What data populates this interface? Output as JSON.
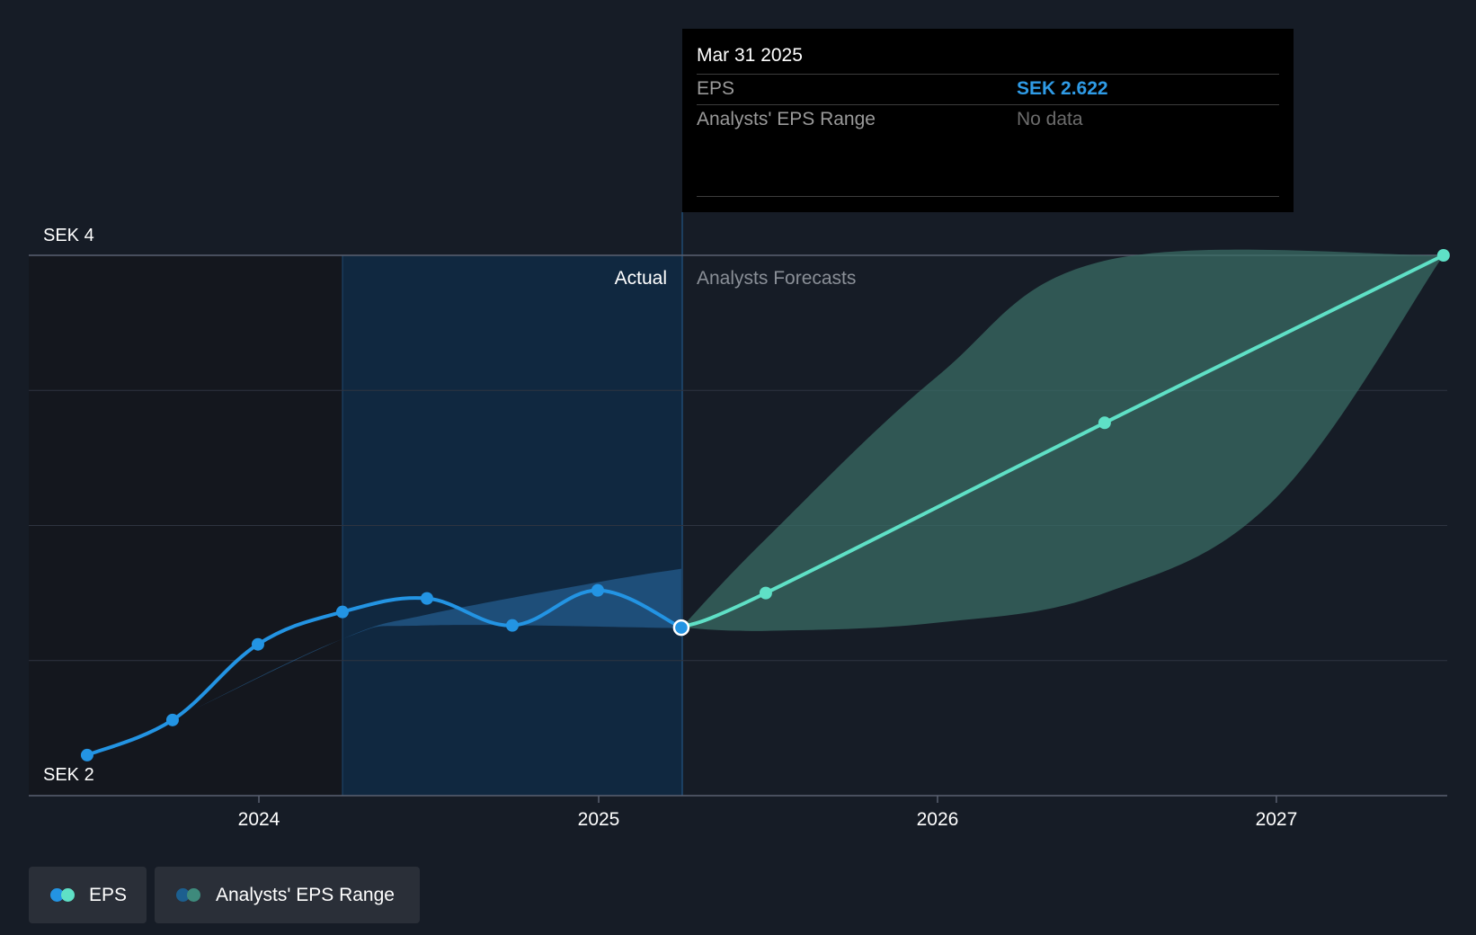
{
  "tooltip": {
    "date": "Mar 31 2025",
    "eps_label": "EPS",
    "eps_value": "SEK 2.622",
    "range_label": "Analysts' EPS Range",
    "range_value": "No data"
  },
  "labels": {
    "actual": "Actual",
    "forecast": "Analysts Forecasts"
  },
  "legend": {
    "eps": "EPS",
    "range": "Analysts' EPS Range"
  },
  "colors": {
    "background": "#161c26",
    "actual_line": "#2394e3",
    "forecast_line": "#5fe0c6",
    "forecast_band": "#3a6f66",
    "actual_band": "#2a6ea8",
    "highlight": "#0f2a44"
  },
  "chart_data": {
    "type": "line",
    "x_tick_labels": [
      "2024",
      "2025",
      "2026",
      "2027"
    ],
    "y_tick_labels": [
      "SEK 2",
      "SEK 4"
    ],
    "ylim": [
      2,
      4
    ],
    "xlim": [
      "2023-06",
      "2027-06"
    ],
    "grid": true,
    "legend_position": "bottom-left",
    "series": [
      {
        "name": "EPS",
        "points": [
          {
            "x": "2023-06-30",
            "y": 2.15
          },
          {
            "x": "2023-09-30",
            "y": 2.28
          },
          {
            "x": "2023-12-31",
            "y": 2.56
          },
          {
            "x": "2024-03-31",
            "y": 2.68
          },
          {
            "x": "2024-06-30",
            "y": 2.73
          },
          {
            "x": "2024-09-30",
            "y": 2.63
          },
          {
            "x": "2024-12-31",
            "y": 2.76
          },
          {
            "x": "2025-03-31",
            "y": 2.622
          }
        ]
      },
      {
        "name": "EPS",
        "forecast": true,
        "points": [
          {
            "x": "2025-03-31",
            "y": 2.622
          },
          {
            "x": "2025-06-30",
            "y": 2.75
          },
          {
            "x": "2026-06-30",
            "y": 3.38
          },
          {
            "x": "2027-06-30",
            "y": 4.0
          }
        ]
      },
      {
        "name": "Analysts' EPS Range",
        "type": "area",
        "actual_band": {
          "low": [
            {
              "x": "2023-09-30",
              "y": 2.28
            },
            {
              "x": "2024-03-31",
              "y": 2.58
            },
            {
              "x": "2024-06-30",
              "y": 2.63
            },
            {
              "x": "2025-03-31",
              "y": 2.62
            }
          ],
          "high": [
            {
              "x": "2023-09-30",
              "y": 2.28
            },
            {
              "x": "2024-03-31",
              "y": 2.58
            },
            {
              "x": "2024-06-30",
              "y": 2.67
            },
            {
              "x": "2024-12-31",
              "y": 2.79
            },
            {
              "x": "2025-03-31",
              "y": 2.84
            }
          ]
        },
        "forecast_band": {
          "low": [
            {
              "x": "2025-03-31",
              "y": 2.622
            },
            {
              "x": "2025-06-30",
              "y": 2.61
            },
            {
              "x": "2025-12-31",
              "y": 2.64
            },
            {
              "x": "2026-06-30",
              "y": 2.75
            },
            {
              "x": "2026-12-31",
              "y": 3.1
            },
            {
              "x": "2027-06-30",
              "y": 4.0
            }
          ],
          "high": [
            {
              "x": "2025-03-31",
              "y": 2.622
            },
            {
              "x": "2025-06-30",
              "y": 2.95
            },
            {
              "x": "2025-12-31",
              "y": 3.55
            },
            {
              "x": "2026-06-30",
              "y": 3.98
            },
            {
              "x": "2027-06-30",
              "y": 4.0
            }
          ]
        }
      }
    ]
  }
}
